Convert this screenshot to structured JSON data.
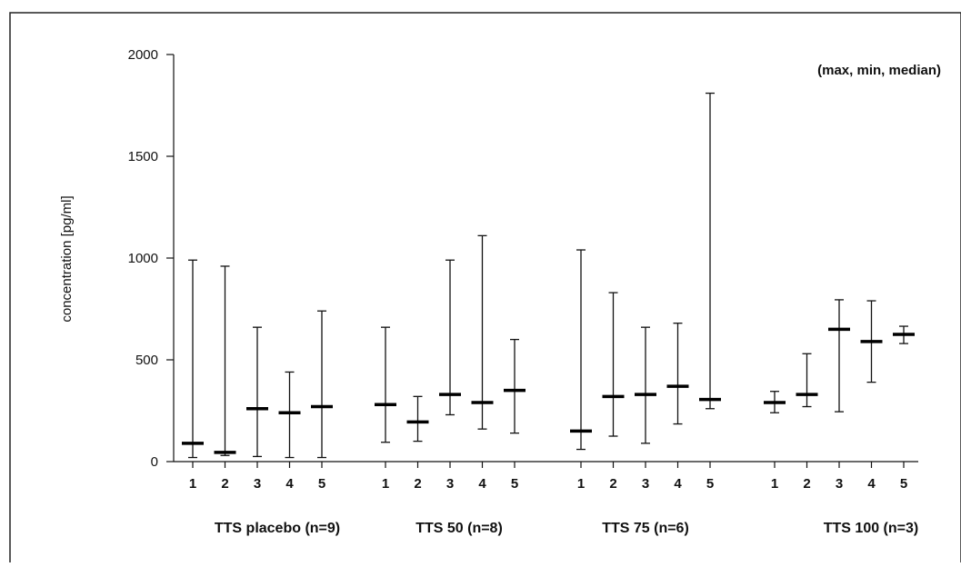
{
  "chart_data": {
    "type": "range",
    "annotation": "(max, min, median)",
    "ylabel": "concentration [pg/ml]",
    "xlabel": "",
    "ylim": [
      0,
      2000
    ],
    "yticks": [
      0,
      500,
      1000,
      1500,
      2000
    ],
    "groups": [
      {
        "label": "TTS placebo (n=9)",
        "categories": [
          "1",
          "2",
          "3",
          "4",
          "5"
        ],
        "max": [
          990,
          960,
          660,
          440,
          740
        ],
        "min": [
          20,
          30,
          25,
          20,
          20
        ],
        "median": [
          90,
          45,
          260,
          240,
          270
        ]
      },
      {
        "label": "TTS 50 (n=8)",
        "categories": [
          "1",
          "2",
          "3",
          "4",
          "5"
        ],
        "max": [
          660,
          320,
          990,
          1110,
          600
        ],
        "min": [
          95,
          100,
          230,
          160,
          140
        ],
        "median": [
          280,
          195,
          330,
          290,
          350
        ]
      },
      {
        "label": "TTS 75 (n=6)",
        "categories": [
          "1",
          "2",
          "3",
          "4",
          "5"
        ],
        "max": [
          1040,
          830,
          660,
          680,
          1810
        ],
        "min": [
          60,
          125,
          90,
          185,
          260
        ],
        "median": [
          150,
          320,
          330,
          370,
          305
        ]
      },
      {
        "label": "TTS 100 (n=3)",
        "categories": [
          "1",
          "2",
          "3",
          "4",
          "5"
        ],
        "max": [
          345,
          530,
          795,
          790,
          665
        ],
        "min": [
          240,
          270,
          245,
          390,
          580
        ],
        "median": [
          290,
          330,
          650,
          590,
          625
        ]
      }
    ]
  }
}
